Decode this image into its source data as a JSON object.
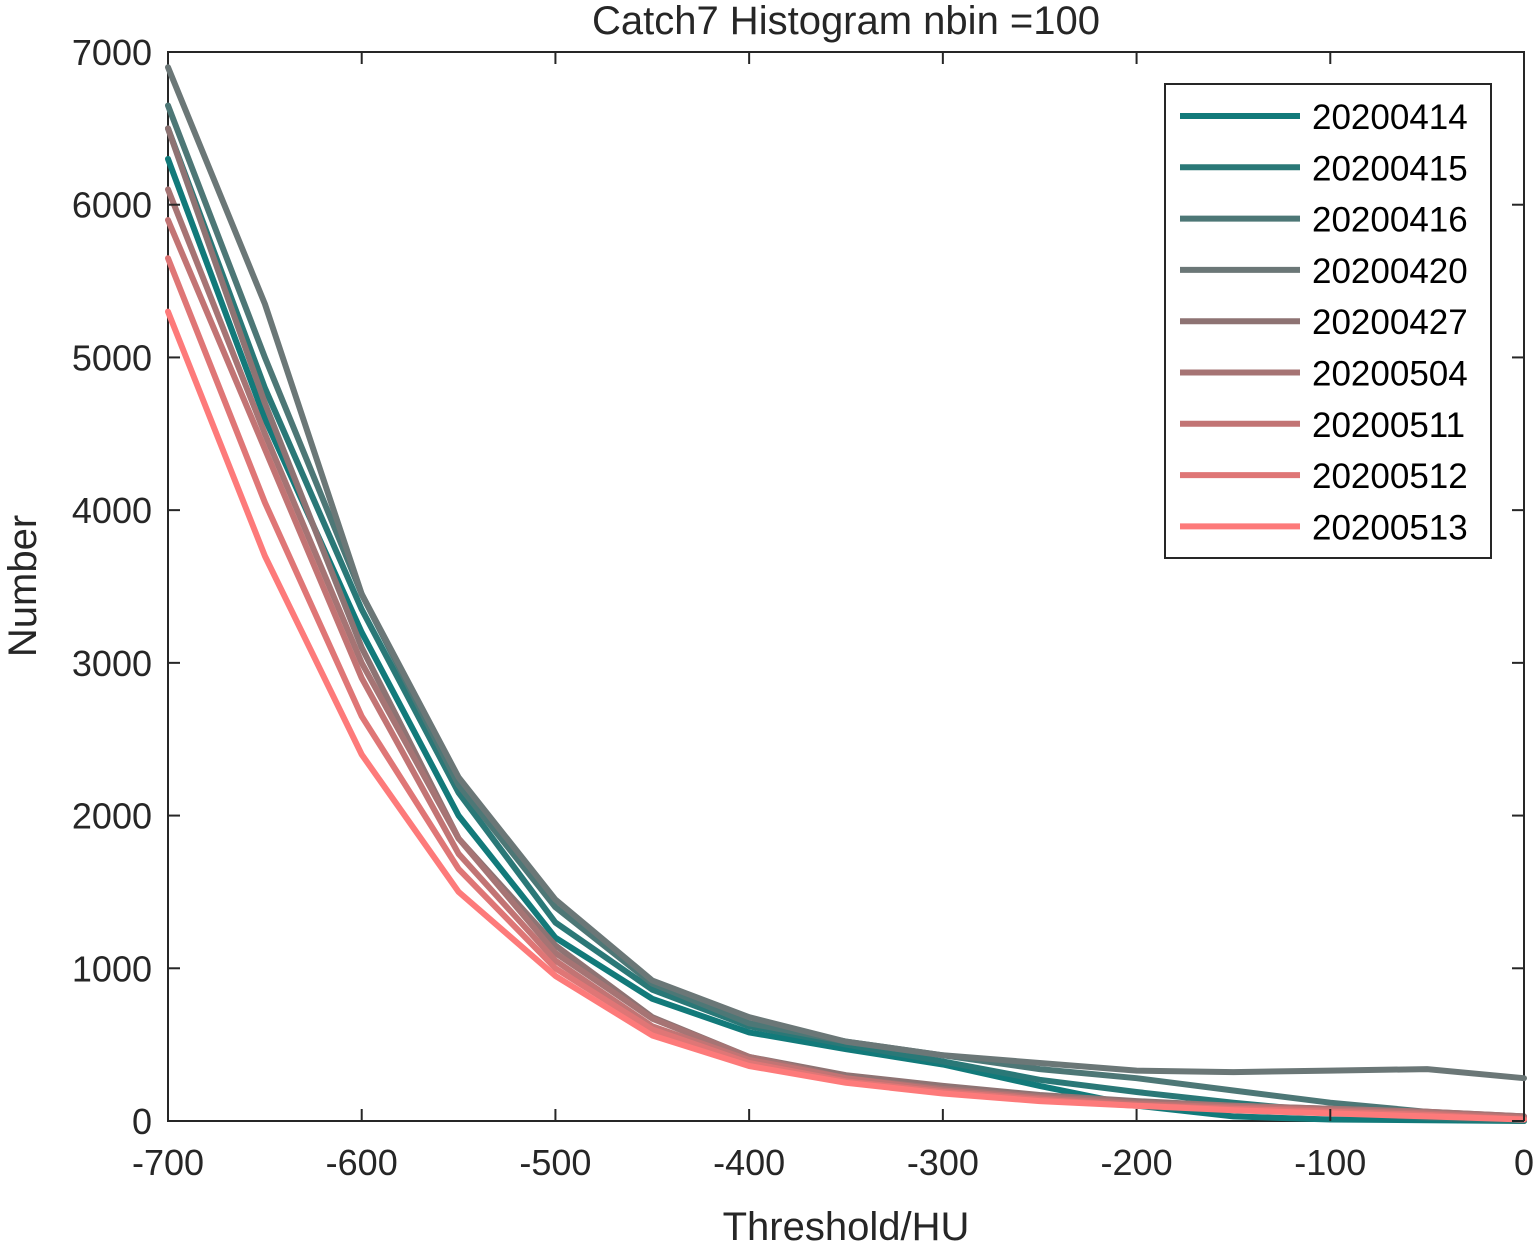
{
  "chart_data": {
    "type": "line",
    "title": "Catch7  Histogram nbin =100",
    "xlabel": "Threshold/HU",
    "ylabel": "Number",
    "xlim": [
      -700,
      0
    ],
    "ylim": [
      0,
      7000
    ],
    "xticks": [
      -700,
      -600,
      -500,
      -400,
      -300,
      -200,
      -100,
      0
    ],
    "xtick_labels": [
      "-700",
      "-600",
      "-500",
      "-400",
      "-300",
      "-200",
      "-100",
      "0"
    ],
    "yticks": [
      0,
      1000,
      2000,
      3000,
      4000,
      5000,
      6000,
      7000
    ],
    "ytick_labels": [
      "0",
      "1000",
      "2000",
      "3000",
      "4000",
      "5000",
      "6000",
      "7000"
    ],
    "grid": false,
    "legend_position": "top-right",
    "x": [
      -700,
      -650,
      -600,
      -550,
      -500,
      -450,
      -400,
      -350,
      -300,
      -250,
      -200,
      -150,
      -100,
      -50,
      0
    ],
    "series": [
      {
        "name": "20200414",
        "color": "#127a7a",
        "values": [
          6300,
          4600,
          3200,
          2000,
          1200,
          800,
          580,
          470,
          370,
          230,
          100,
          30,
          10,
          5,
          0
        ]
      },
      {
        "name": "20200415",
        "color": "#2a7877",
        "values": [
          6500,
          4800,
          3350,
          2150,
          1300,
          860,
          620,
          500,
          390,
          270,
          190,
          120,
          60,
          20,
          0
        ]
      },
      {
        "name": "20200416",
        "color": "#4d7776",
        "values": [
          6650,
          5000,
          3450,
          2200,
          1400,
          900,
          640,
          520,
          430,
          340,
          280,
          200,
          120,
          60,
          10
        ]
      },
      {
        "name": "20200420",
        "color": "#6b7777",
        "values": [
          6900,
          5350,
          3450,
          2250,
          1450,
          920,
          680,
          520,
          430,
          380,
          330,
          320,
          330,
          340,
          280
        ]
      },
      {
        "name": "20200427",
        "color": "#8e7373",
        "values": [
          6500,
          4700,
          3100,
          1850,
          1150,
          680,
          420,
          300,
          230,
          170,
          130,
          100,
          80,
          60,
          30
        ]
      },
      {
        "name": "20200504",
        "color": "#a67474",
        "values": [
          6100,
          4500,
          3000,
          1850,
          1100,
          670,
          420,
          280,
          210,
          160,
          120,
          100,
          80,
          60,
          30
        ]
      },
      {
        "name": "20200511",
        "color": "#c27474",
        "values": [
          5900,
          4400,
          2900,
          1750,
          1050,
          620,
          400,
          280,
          200,
          150,
          110,
          90,
          70,
          50,
          20
        ]
      },
      {
        "name": "20200512",
        "color": "#df7676",
        "values": [
          5650,
          4050,
          2650,
          1650,
          1000,
          600,
          380,
          260,
          190,
          140,
          100,
          80,
          60,
          40,
          10
        ]
      },
      {
        "name": "20200513",
        "color": "#fd7a7a",
        "values": [
          5300,
          3700,
          2400,
          1500,
          950,
          560,
          360,
          250,
          180,
          130,
          100,
          70,
          50,
          30,
          10
        ]
      }
    ]
  }
}
